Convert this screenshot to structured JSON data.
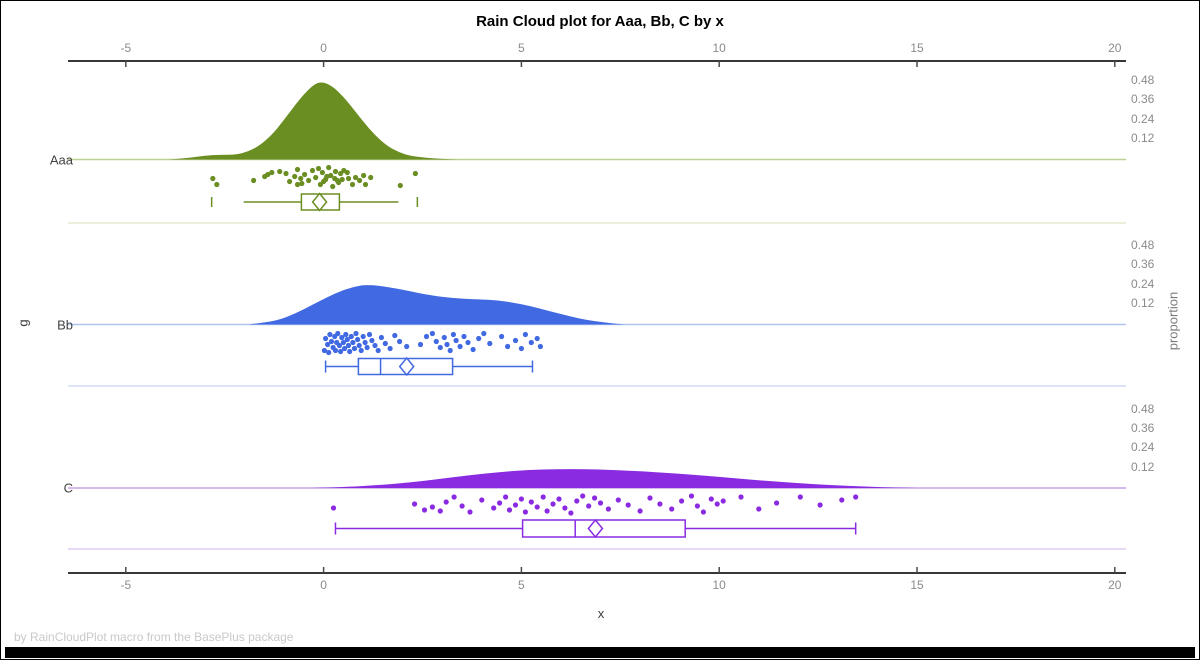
{
  "title": "Rain Cloud plot for Aaa, Bb, C by x",
  "footnote": "by RainCloudPlot macro from the BasePlus package",
  "axes": {
    "x": {
      "label": "x",
      "ticks": [
        "-5",
        "0",
        "5",
        "10",
        "15",
        "20"
      ],
      "tick_values": [
        -5,
        0,
        5,
        10,
        15,
        20
      ],
      "range": [
        -6.45,
        20.3
      ]
    },
    "y_left": {
      "label": "g",
      "categories": [
        "Aaa",
        "Bb",
        "C"
      ]
    },
    "y_right": {
      "label": "proportion",
      "ticks": [
        "0.48",
        "0.36",
        "0.24",
        "0.12"
      ],
      "tick_values": [
        0.48,
        0.36,
        0.24,
        0.12
      ]
    }
  },
  "colors": {
    "background": "#ffffff",
    "border": "#000000",
    "title_text": "#000000",
    "tick_label": "#8b8b8b",
    "category_label": "#424242",
    "axis_line": "#373737",
    "tick_mark": "#4a4a4a",
    "footnote_text": "#c9c9c9",
    "right_axis_label": "#7a7a7a"
  },
  "chart_data": {
    "type": "raincloud",
    "orientation": "horizontal",
    "title": "Rain Cloud plot for Aaa, Bb, C by x",
    "xlabel": "x",
    "group_axis_label": "g",
    "proportion_axis_label": "proportion",
    "x_ticks": [
      -5,
      0,
      5,
      10,
      15,
      20
    ],
    "xlim": [
      -6.45,
      20.3
    ],
    "proportion_ticks": [
      0.48,
      0.36,
      0.24,
      0.12
    ],
    "grid": false,
    "legend": "none",
    "groups": [
      {
        "name": "Aaa",
        "fill": "#6B8E23",
        "baseline_color": "#bccf95",
        "separator_color": "#e3ecd1",
        "density": [
          [
            -3.9,
            0
          ],
          [
            -3.4,
            0.01
          ],
          [
            -3.0,
            0.025
          ],
          [
            -2.6,
            0.03
          ],
          [
            -2.2,
            0.03
          ],
          [
            -1.9,
            0.05
          ],
          [
            -1.6,
            0.09
          ],
          [
            -1.3,
            0.155
          ],
          [
            -1.0,
            0.245
          ],
          [
            -0.7,
            0.345
          ],
          [
            -0.4,
            0.43
          ],
          [
            -0.2,
            0.47
          ],
          [
            -0.05,
            0.48
          ],
          [
            0.15,
            0.465
          ],
          [
            0.4,
            0.415
          ],
          [
            0.7,
            0.33
          ],
          [
            1.0,
            0.235
          ],
          [
            1.3,
            0.15
          ],
          [
            1.6,
            0.085
          ],
          [
            1.9,
            0.045
          ],
          [
            2.2,
            0.022
          ],
          [
            2.6,
            0.01
          ],
          [
            3.0,
            0.004
          ],
          [
            3.4,
            0
          ]
        ],
        "points": [
          [
            -2.8,
            19
          ],
          [
            -2.7,
            25
          ],
          [
            -1.77,
            21
          ],
          [
            -1.49,
            17
          ],
          [
            -1.41,
            15
          ],
          [
            -1.31,
            13
          ],
          [
            -1.11,
            12
          ],
          [
            -0.95,
            14
          ],
          [
            -0.86,
            22
          ],
          [
            -0.73,
            17
          ],
          [
            -0.66,
            10
          ],
          [
            -0.66,
            25
          ],
          [
            -0.58,
            19
          ],
          [
            -0.55,
            24
          ],
          [
            -0.48,
            15
          ],
          [
            -0.38,
            21
          ],
          [
            -0.28,
            11
          ],
          [
            -0.2,
            18
          ],
          [
            -0.13,
            9
          ],
          [
            -0.08,
            25
          ],
          [
            -0.03,
            13
          ],
          [
            0.0,
            22
          ],
          [
            0.05,
            20
          ],
          [
            0.08,
            17
          ],
          [
            0.13,
            8
          ],
          [
            0.18,
            16
          ],
          [
            0.23,
            27
          ],
          [
            0.28,
            19
          ],
          [
            0.3,
            12
          ],
          [
            0.35,
            21
          ],
          [
            0.38,
            23
          ],
          [
            0.43,
            14
          ],
          [
            0.47,
            20
          ],
          [
            0.51,
            11
          ],
          [
            0.6,
            13
          ],
          [
            0.63,
            19
          ],
          [
            0.73,
            25
          ],
          [
            0.81,
            18
          ],
          [
            0.91,
            21
          ],
          [
            1.01,
            16
          ],
          [
            1.06,
            25
          ],
          [
            1.19,
            18
          ],
          [
            1.94,
            26
          ],
          [
            2.32,
            14
          ]
        ],
        "box": {
          "whisker_low": -2.02,
          "q1": -0.56,
          "median": -0.13,
          "q3": 0.4,
          "whisker_high": 1.89,
          "mean": -0.1,
          "outliers": [
            -2.83,
            2.37
          ]
        },
        "whisker_caps": false
      },
      {
        "name": "Bb",
        "fill": "#4169E1",
        "baseline_color": "#afc5f0",
        "separator_color": "#cfdcf6",
        "density": [
          [
            -1.9,
            0
          ],
          [
            -1.5,
            0.012
          ],
          [
            -1.1,
            0.03
          ],
          [
            -0.7,
            0.07
          ],
          [
            -0.3,
            0.12
          ],
          [
            0.1,
            0.17
          ],
          [
            0.5,
            0.215
          ],
          [
            0.9,
            0.24
          ],
          [
            1.1,
            0.245
          ],
          [
            1.4,
            0.24
          ],
          [
            1.8,
            0.225
          ],
          [
            2.2,
            0.205
          ],
          [
            2.6,
            0.185
          ],
          [
            3.0,
            0.17
          ],
          [
            3.5,
            0.16
          ],
          [
            4.0,
            0.155
          ],
          [
            4.4,
            0.15
          ],
          [
            4.8,
            0.135
          ],
          [
            5.2,
            0.115
          ],
          [
            5.6,
            0.09
          ],
          [
            6.0,
            0.065
          ],
          [
            6.4,
            0.04
          ],
          [
            6.8,
            0.022
          ],
          [
            7.2,
            0.01
          ],
          [
            7.6,
            0
          ]
        ],
        "points": [
          [
            0.02,
            26
          ],
          [
            0.05,
            14
          ],
          [
            0.1,
            20
          ],
          [
            0.13,
            28
          ],
          [
            0.16,
            10
          ],
          [
            0.2,
            17
          ],
          [
            0.24,
            23
          ],
          [
            0.28,
            12
          ],
          [
            0.3,
            26
          ],
          [
            0.33,
            18
          ],
          [
            0.36,
            9
          ],
          [
            0.4,
            21
          ],
          [
            0.43,
            27
          ],
          [
            0.46,
            13
          ],
          [
            0.5,
            18
          ],
          [
            0.53,
            24
          ],
          [
            0.56,
            10
          ],
          [
            0.6,
            15
          ],
          [
            0.63,
            21
          ],
          [
            0.66,
            27
          ],
          [
            0.7,
            12
          ],
          [
            0.74,
            18
          ],
          [
            0.78,
            24
          ],
          [
            0.82,
            9
          ],
          [
            0.86,
            15
          ],
          [
            0.9,
            21
          ],
          [
            0.95,
            26
          ],
          [
            1.0,
            12
          ],
          [
            1.05,
            18
          ],
          [
            1.1,
            23
          ],
          [
            1.16,
            10
          ],
          [
            1.22,
            16
          ],
          [
            1.3,
            21
          ],
          [
            1.38,
            26
          ],
          [
            1.46,
            13
          ],
          [
            1.56,
            19
          ],
          [
            1.68,
            24
          ],
          [
            1.8,
            11
          ],
          [
            1.92,
            17
          ],
          [
            2.1,
            22
          ],
          [
            2.45,
            20
          ],
          [
            2.6,
            12
          ],
          [
            2.75,
            9
          ],
          [
            2.85,
            17
          ],
          [
            2.95,
            23
          ],
          [
            3.05,
            13
          ],
          [
            3.12,
            20
          ],
          [
            3.2,
            26
          ],
          [
            3.28,
            10
          ],
          [
            3.35,
            16
          ],
          [
            3.45,
            22
          ],
          [
            3.55,
            12
          ],
          [
            3.65,
            18
          ],
          [
            3.78,
            25
          ],
          [
            3.92,
            14
          ],
          [
            4.05,
            9
          ],
          [
            4.2,
            19
          ],
          [
            4.5,
            12
          ],
          [
            4.65,
            22
          ],
          [
            4.85,
            16
          ],
          [
            5.0,
            24
          ],
          [
            5.1,
            10
          ],
          [
            5.25,
            18
          ],
          [
            5.4,
            14
          ],
          [
            5.48,
            22
          ]
        ],
        "box": {
          "whisker_low": 0.05,
          "q1": 0.88,
          "median": 1.44,
          "q3": 3.26,
          "whisker_high": 5.28,
          "mean": 2.1,
          "outliers": []
        },
        "whisker_caps": true
      },
      {
        "name": "C",
        "fill": "#8A2BE2",
        "baseline_color": "#c8a2ea",
        "separator_color": "#e0cdf4",
        "density": [
          [
            -0.3,
            0
          ],
          [
            0.5,
            0.006
          ],
          [
            1.3,
            0.016
          ],
          [
            2.1,
            0.032
          ],
          [
            2.9,
            0.055
          ],
          [
            3.7,
            0.08
          ],
          [
            4.5,
            0.1
          ],
          [
            5.2,
            0.112
          ],
          [
            5.9,
            0.117
          ],
          [
            6.6,
            0.117
          ],
          [
            7.3,
            0.112
          ],
          [
            8.0,
            0.104
          ],
          [
            8.8,
            0.092
          ],
          [
            9.6,
            0.077
          ],
          [
            10.4,
            0.06
          ],
          [
            11.2,
            0.044
          ],
          [
            12.0,
            0.03
          ],
          [
            12.8,
            0.018
          ],
          [
            13.6,
            0.009
          ],
          [
            14.4,
            0.003
          ],
          [
            15.0,
            0
          ]
        ],
        "points": [
          [
            0.25,
            20
          ],
          [
            2.3,
            16
          ],
          [
            2.55,
            22
          ],
          [
            2.75,
            19
          ],
          [
            2.95,
            23
          ],
          [
            3.1,
            14
          ],
          [
            3.3,
            9
          ],
          [
            3.5,
            18
          ],
          [
            3.7,
            24
          ],
          [
            4.0,
            12
          ],
          [
            4.3,
            20
          ],
          [
            4.45,
            15
          ],
          [
            4.6,
            9
          ],
          [
            4.7,
            22
          ],
          [
            4.85,
            17
          ],
          [
            5.0,
            11
          ],
          [
            5.1,
            24
          ],
          [
            5.25,
            14
          ],
          [
            5.4,
            19
          ],
          [
            5.55,
            9
          ],
          [
            5.65,
            23
          ],
          [
            5.8,
            16
          ],
          [
            5.95,
            11
          ],
          [
            6.1,
            20
          ],
          [
            6.25,
            25
          ],
          [
            6.4,
            13
          ],
          [
            6.55,
            8
          ],
          [
            6.7,
            18
          ],
          [
            6.85,
            10
          ],
          [
            7.0,
            15
          ],
          [
            7.2,
            21
          ],
          [
            7.45,
            12
          ],
          [
            7.7,
            17
          ],
          [
            8.0,
            23
          ],
          [
            8.25,
            10
          ],
          [
            8.5,
            16
          ],
          [
            8.8,
            21
          ],
          [
            9.05,
            13
          ],
          [
            9.3,
            8
          ],
          [
            9.45,
            18
          ],
          [
            9.6,
            24
          ],
          [
            9.8,
            11
          ],
          [
            9.95,
            16
          ],
          [
            10.1,
            13
          ],
          [
            10.55,
            9
          ],
          [
            11.0,
            21
          ],
          [
            11.45,
            15
          ],
          [
            12.05,
            9
          ],
          [
            12.55,
            17
          ],
          [
            13.1,
            12
          ],
          [
            13.45,
            9
          ]
        ],
        "box": {
          "whisker_low": 0.3,
          "q1": 5.03,
          "median": 6.36,
          "q3": 9.14,
          "whisker_high": 13.45,
          "mean": 6.87,
          "outliers": []
        },
        "whisker_caps": true
      }
    ]
  }
}
